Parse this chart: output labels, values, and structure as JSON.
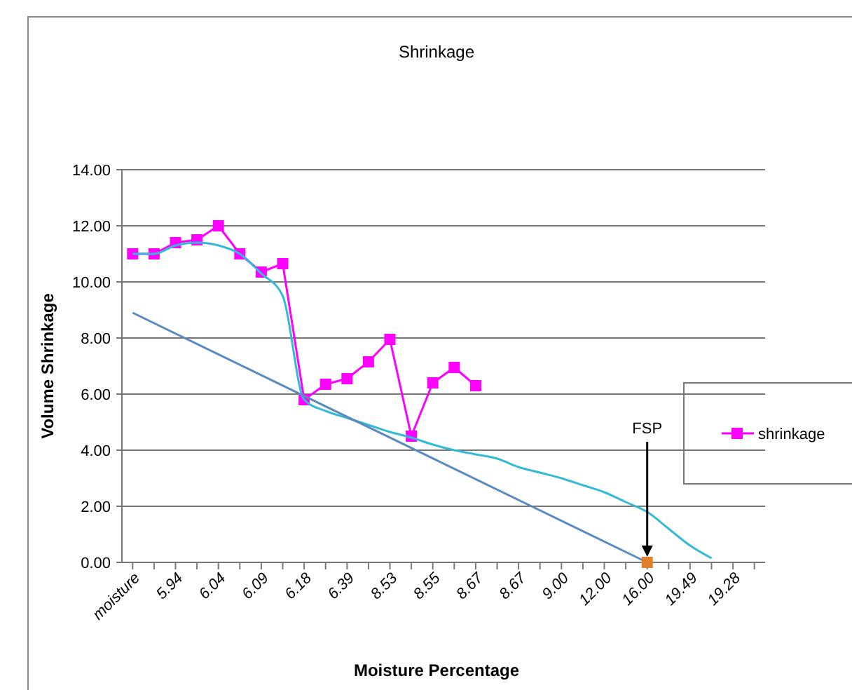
{
  "chart_data": {
    "type": "line",
    "title": "Shrinkage",
    "xlabel": "Moisture Percentage",
    "ylabel": "Volume Shrinkage",
    "categories": [
      "moisture",
      null,
      "5.94",
      null,
      "6.04",
      null,
      "6.09",
      null,
      "6.18",
      null,
      "6.39",
      null,
      "8.53",
      null,
      "8.55",
      null,
      "8.67",
      null,
      "8.67",
      null,
      "9.00",
      null,
      "12.00",
      null,
      "16.00",
      null,
      "19.49",
      null,
      "19.28",
      null
    ],
    "series": [
      {
        "name": "shrinkage",
        "color": "#ff00ff",
        "marker": "square",
        "values": [
          11.0,
          11.0,
          11.4,
          11.5,
          12.0,
          11.0,
          10.35,
          10.65,
          5.8,
          6.35,
          6.55,
          7.15,
          7.95,
          4.5,
          6.4,
          6.95,
          6.3,
          null,
          null,
          null,
          null,
          null,
          null,
          null,
          null,
          null,
          null,
          null,
          null,
          null
        ]
      },
      {
        "type": "line",
        "color": "#33bbd6",
        "marker": "none",
        "values": [
          11.0,
          11.0,
          11.3,
          11.4,
          11.3,
          11.0,
          10.3,
          9.5,
          5.8,
          5.4,
          5.15,
          4.9,
          4.65,
          4.45,
          4.2,
          4.0,
          3.85,
          3.7,
          3.4,
          3.2,
          3.0,
          2.75,
          2.5,
          2.15,
          1.8,
          1.2,
          0.6,
          0.15,
          null,
          null
        ]
      },
      {
        "type": "line",
        "color": "#5b8ac0",
        "marker": "none",
        "values": [
          8.9,
          null,
          null,
          null,
          null,
          null,
          null,
          null,
          null,
          null,
          null,
          null,
          null,
          null,
          null,
          null,
          null,
          null,
          null,
          null,
          null,
          null,
          null,
          null,
          0,
          null,
          null,
          null,
          null,
          null
        ]
      },
      {
        "type": "scatter",
        "color": "#e0802a",
        "marker": "square",
        "values": [
          null,
          null,
          null,
          null,
          null,
          null,
          null,
          null,
          null,
          null,
          null,
          null,
          null,
          null,
          null,
          null,
          null,
          null,
          null,
          null,
          null,
          null,
          null,
          null,
          0,
          null,
          null,
          null,
          null,
          null
        ]
      }
    ],
    "annotations": [
      "FSP"
    ],
    "ylim": [
      0,
      14
    ],
    "yticks": [
      {
        "value": 0,
        "label": "0.00"
      },
      {
        "value": 2,
        "label": "2.00"
      },
      {
        "value": 4,
        "label": "4.00"
      },
      {
        "value": 6,
        "label": "6.00"
      },
      {
        "value": 8,
        "label": "8.00"
      },
      {
        "value": 10,
        "label": "10.00"
      },
      {
        "value": 12,
        "label": "12.00"
      },
      {
        "value": 14,
        "label": "14.00"
      }
    ],
    "grid": "y",
    "legend": "right",
    "line_style": "solid"
  }
}
